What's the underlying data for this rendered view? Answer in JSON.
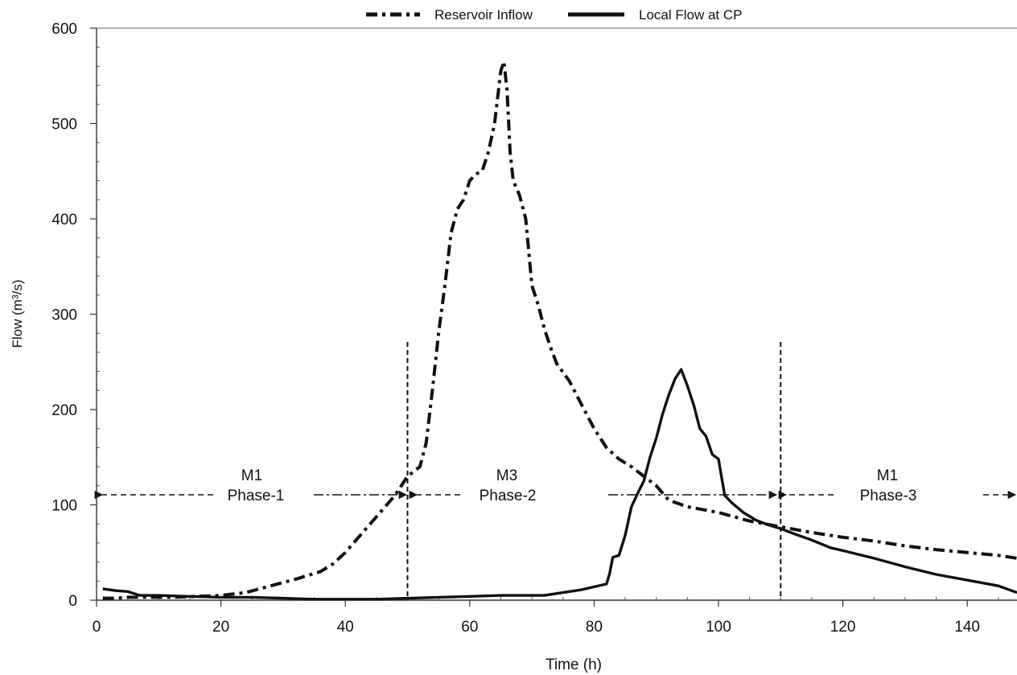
{
  "chart_data": {
    "type": "line",
    "title": "",
    "xlabel": "Time (h)",
    "ylabel": "Flow (m³/s)",
    "xlim": [
      0,
      148
    ],
    "ylim": [
      0,
      600
    ],
    "xticks": [
      0,
      20,
      40,
      60,
      80,
      100,
      120,
      140
    ],
    "yticks": [
      0,
      100,
      200,
      300,
      400,
      500,
      600
    ],
    "grid": false,
    "legend_position": "top-center",
    "series": [
      {
        "name": "Reservoir Inflow",
        "style": "dash-dot",
        "color": "#111111",
        "x": [
          1,
          3,
          5,
          8,
          12,
          16,
          20,
          24,
          28,
          32,
          36,
          38,
          40,
          42,
          44,
          46,
          48,
          50,
          52,
          53,
          54,
          55,
          56,
          57,
          58,
          59,
          60,
          61,
          62,
          63,
          64,
          65,
          65.5,
          66,
          66.5,
          67,
          68,
          69,
          70,
          71,
          72,
          73,
          74,
          76,
          78,
          80,
          82,
          84,
          86,
          88,
          90,
          92,
          95,
          100,
          105,
          110,
          115,
          120,
          125,
          130,
          135,
          140,
          145,
          148
        ],
        "y": [
          2,
          2,
          3,
          3,
          3,
          4,
          5,
          8,
          15,
          22,
          30,
          38,
          50,
          65,
          80,
          95,
          110,
          130,
          140,
          165,
          220,
          280,
          330,
          385,
          410,
          420,
          440,
          447,
          450,
          470,
          500,
          555,
          565,
          535,
          470,
          440,
          425,
          400,
          330,
          310,
          285,
          265,
          248,
          230,
          205,
          180,
          160,
          148,
          140,
          130,
          120,
          105,
          98,
          92,
          83,
          77,
          71,
          66,
          62,
          57,
          53,
          50,
          47,
          44
        ]
      },
      {
        "name": "Local Flow at CP",
        "style": "solid",
        "color": "#111111",
        "x": [
          1,
          3,
          5,
          7,
          10,
          15,
          20,
          25,
          30,
          35,
          40,
          45,
          50,
          55,
          60,
          65,
          70,
          72,
          74,
          76,
          78,
          80,
          82,
          82.5,
          83,
          84,
          85,
          86,
          87,
          88,
          89,
          90,
          91,
          92,
          93,
          94,
          95,
          96,
          97,
          98,
          99,
          100,
          101,
          102,
          104,
          106,
          108,
          110,
          112,
          115,
          118,
          120,
          125,
          130,
          135,
          140,
          145,
          148
        ],
        "y": [
          12,
          10,
          9,
          5,
          5,
          4,
          3,
          3,
          2,
          1,
          1,
          1,
          2,
          3,
          4,
          5,
          5,
          5,
          7,
          9,
          11,
          14,
          17,
          28,
          45,
          47,
          68,
          98,
          112,
          125,
          150,
          170,
          195,
          215,
          232,
          242,
          225,
          205,
          180,
          172,
          153,
          148,
          110,
          103,
          92,
          84,
          79,
          75,
          70,
          63,
          55,
          52,
          44,
          35,
          27,
          21,
          15,
          8
        ]
      }
    ],
    "annotations": {
      "vlines": [
        50,
        110
      ],
      "phases": [
        {
          "method": "M1",
          "phase": "Phase-1"
        },
        {
          "method": "M3",
          "phase": "Phase-2"
        },
        {
          "method": "M1",
          "phase": "Phase-3"
        }
      ]
    }
  }
}
